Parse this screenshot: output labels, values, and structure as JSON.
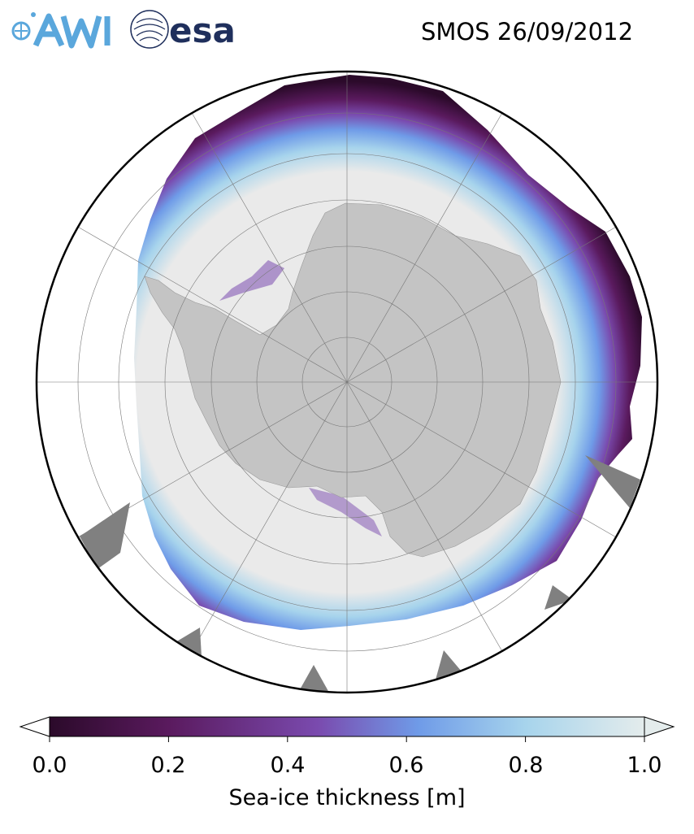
{
  "header": {
    "title": "SMOS 26/09/2012",
    "logos": {
      "awi": {
        "name": "AWI",
        "color": "#5aa7dc"
      },
      "esa": {
        "name": "esa",
        "color": "#1f2f5c"
      }
    }
  },
  "map": {
    "projection": "south-polar-stereographic",
    "colors": {
      "land": "#c4c4c4",
      "ocean": "#ffffff",
      "thick_ice": "#eaeaea",
      "no_data": "#808080",
      "gridline": "#777777",
      "boundary": "#000000"
    }
  },
  "colorbar": {
    "label": "Sea-ice thickness [m]",
    "ticks": [
      "0.0",
      "0.2",
      "0.4",
      "0.6",
      "0.8",
      "1.0"
    ],
    "range": [
      0.0,
      1.0
    ],
    "extend": "both",
    "colormap_stops": [
      "#2b0a2a",
      "#5a1a5e",
      "#7a4aae",
      "#6f9be8",
      "#a7d4ec",
      "#e4ecec"
    ]
  }
}
